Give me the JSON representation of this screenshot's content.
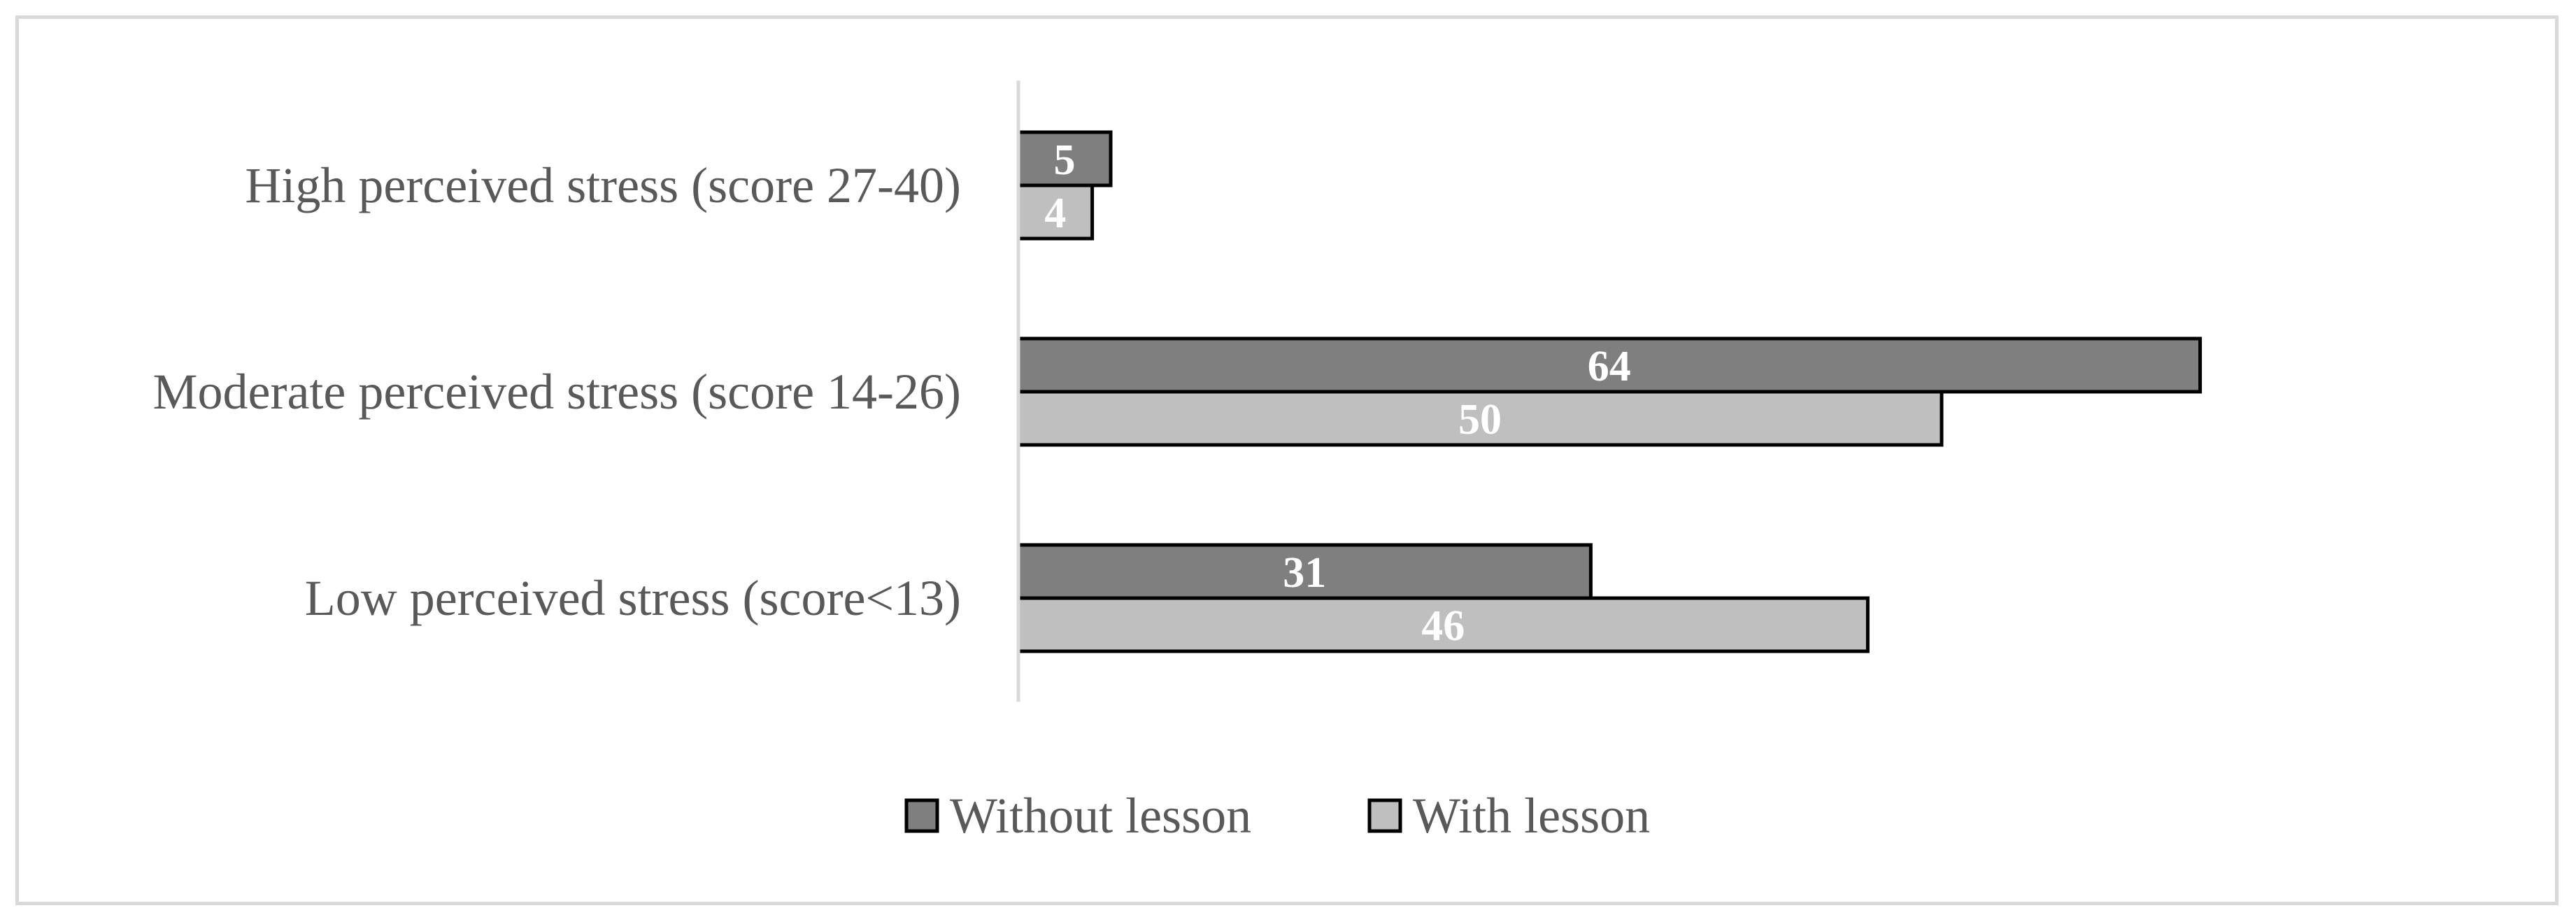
{
  "chart_data": {
    "type": "bar",
    "orientation": "horizontal",
    "categories": [
      "High perceived stress (score 27-40)",
      "Moderate perceived stress (score 14-26)",
      "Low perceived stress (score<13)"
    ],
    "series": [
      {
        "name": "Without lesson",
        "values": [
          5,
          64,
          31
        ],
        "color": "#7f7f7f"
      },
      {
        "name": "With lesson",
        "values": [
          4,
          50,
          46
        ],
        "color": "#bfbfbf"
      }
    ],
    "xlim": [
      0,
      80
    ],
    "bar_outline_color": "#000000",
    "axis_line_color": "#d9d9d9",
    "data_labels": true,
    "gridlines": false,
    "legend_position": "bottom"
  }
}
